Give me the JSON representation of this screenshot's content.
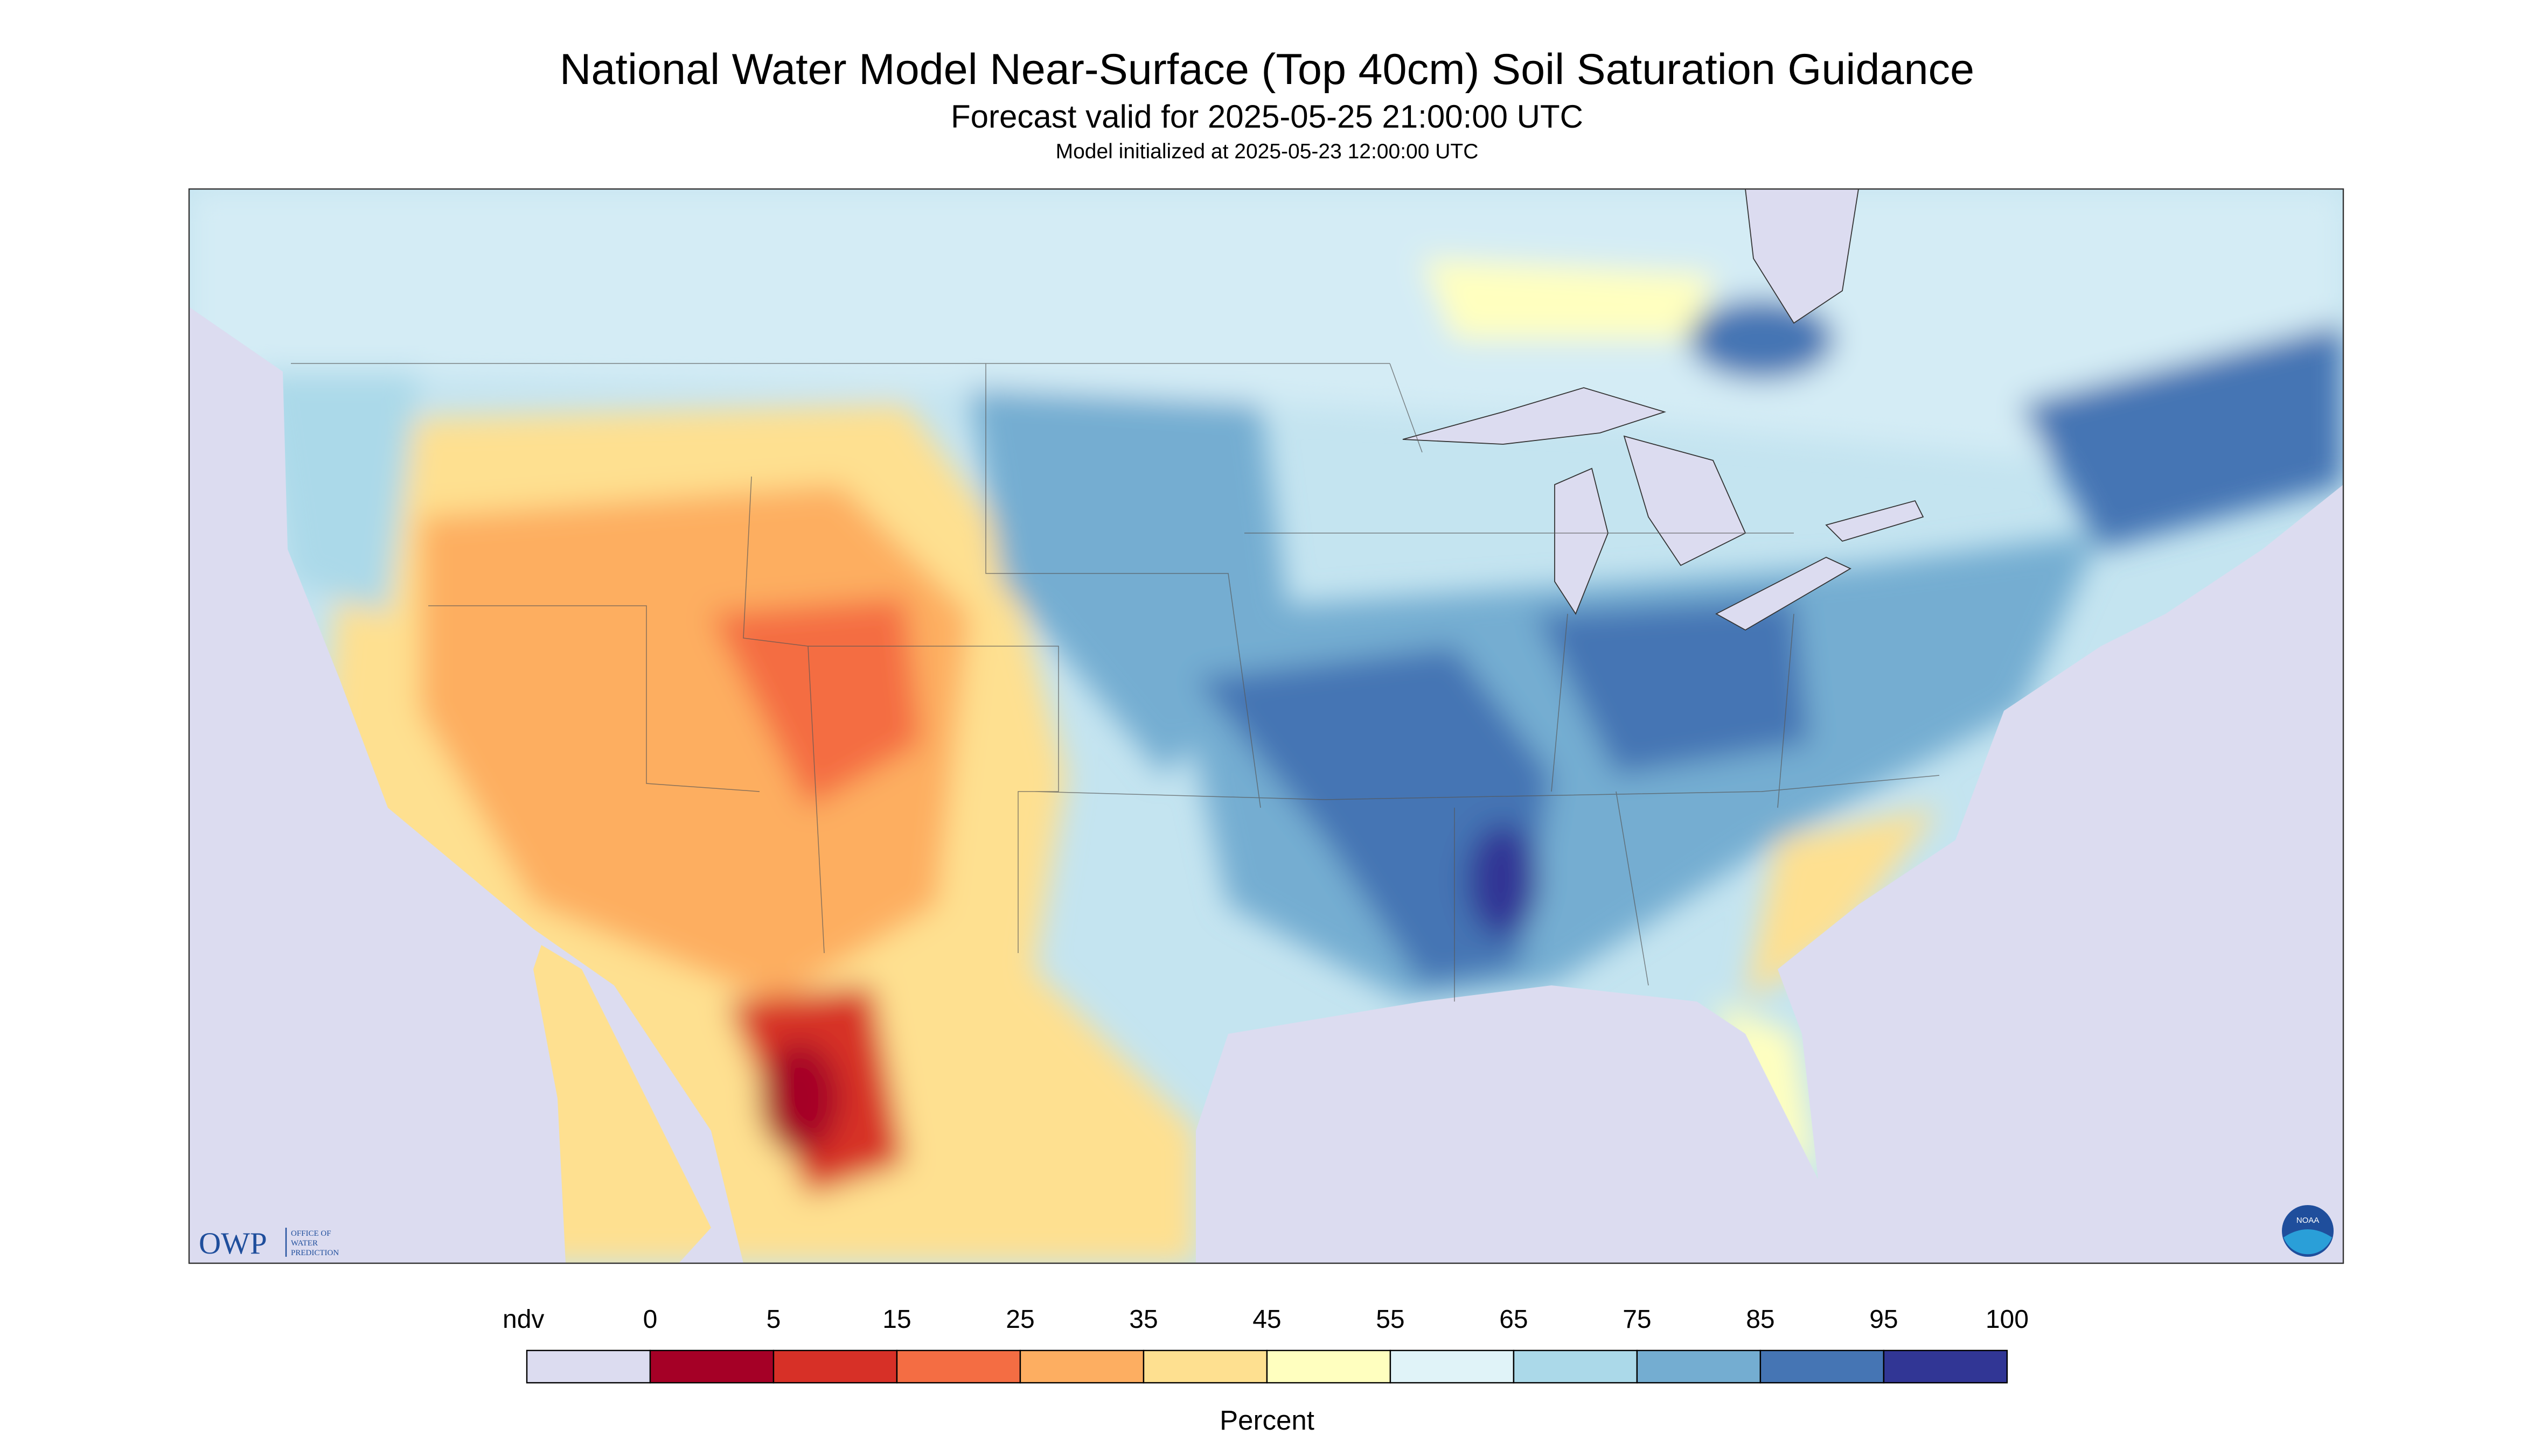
{
  "header": {
    "title": "National Water Model Near-Surface (Top 40cm) Soil Saturation Guidance",
    "subtitle": "Forecast valid for 2025-05-25 21:00:00 UTC",
    "initialized": "Model initialized at 2025-05-23 12:00:00 UTC"
  },
  "legend": {
    "labels": [
      "ndv",
      0,
      5,
      15,
      25,
      35,
      45,
      55,
      65,
      75,
      85,
      95,
      100
    ],
    "colors": [
      "#dcdcf0",
      "#a50026",
      "#d73027",
      "#f46d43",
      "#fdae61",
      "#fee090",
      "#ffffbf",
      "#e0f3f8",
      "#abd9e9",
      "#74add1",
      "#4575b4",
      "#313695"
    ],
    "unit": "Percent"
  },
  "logos": {
    "owp": "OWP",
    "owp_name": [
      "OFFICE OF",
      "WATER",
      "PREDICTION"
    ],
    "noaa": "NOAA"
  }
}
